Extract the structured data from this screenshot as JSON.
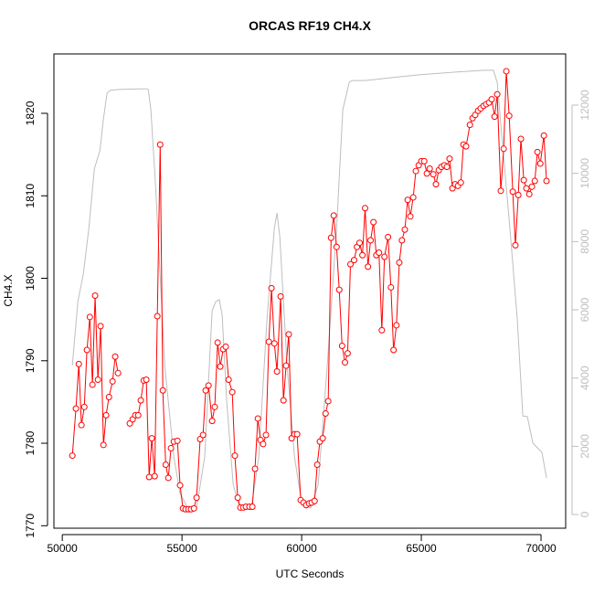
{
  "chart_data": {
    "type": "line",
    "title": "ORCAS RF19 CH4.X",
    "x_label": "UTC Seconds",
    "y_label": "CH4.X",
    "xlim": [
      49650,
      71030
    ],
    "xticks": [
      50000,
      55000,
      60000,
      65000,
      70000
    ],
    "ylim": [
      1769.7,
      1827.2
    ],
    "yticks": [
      1770,
      1780,
      1790,
      1800,
      1810,
      1820
    ],
    "y2lim": [
      -400,
      13500
    ],
    "y2ticks": [
      0,
      2000,
      4000,
      6000,
      8000,
      10000,
      12000
    ],
    "y2_color": "#bebebe",
    "series": [
      {
        "color": "#bebebe",
        "axis": "y2",
        "markers": false,
        "x": [
          50420,
          50650,
          50880,
          51110,
          51340,
          51450,
          51570,
          51720,
          51870,
          51990,
          52370,
          53510,
          53590,
          53700,
          53890,
          54280,
          54660,
          54920,
          55230,
          55610,
          55950,
          56260,
          56410,
          56560,
          56680,
          56870,
          57140,
          57410,
          57900,
          58210,
          58550,
          58860,
          58970,
          59090,
          59390,
          59700,
          60000,
          60380,
          60690,
          61070,
          61460,
          61720,
          61990,
          62110,
          62680,
          63820,
          64960,
          66490,
          67630,
          68010,
          68170,
          68400,
          68700,
          69010,
          69240,
          69430,
          69660,
          69930,
          70040,
          70230
        ],
        "values": [
          4370,
          6240,
          7050,
          8390,
          10130,
          10390,
          10660,
          11600,
          12350,
          12430,
          12460,
          12480,
          12460,
          11870,
          9720,
          4370,
          1690,
          620,
          210,
          190,
          1690,
          5970,
          6240,
          6300,
          5840,
          3300,
          880,
          210,
          210,
          1690,
          5710,
          8390,
          8840,
          8120,
          4370,
          1690,
          350,
          190,
          880,
          4370,
          8390,
          11870,
          12670,
          12720,
          12720,
          12810,
          12890,
          12970,
          13020,
          13020,
          12670,
          10800,
          8390,
          5710,
          2890,
          2870,
          2090,
          1900,
          1820,
          1070
        ]
      },
      {
        "color": "#ff0000",
        "markers": true,
        "x": [
          50420,
          50570,
          50690,
          50800,
          50920,
          51030,
          51150,
          51260,
          51370,
          51490,
          51600,
          51720,
          51830,
          51950,
          52100,
          52210,
          52330,
          52580,
          52820,
          52940,
          53050,
          53170,
          53280,
          53400,
          53510,
          53630,
          53740,
          53860,
          53970,
          54090,
          54200,
          54320,
          54430,
          54540,
          54660,
          54810,
          54920,
          55040,
          55150,
          55270,
          55380,
          55500,
          55610,
          55760,
          55880,
          55990,
          56110,
          56260,
          56370,
          56490,
          56600,
          56720,
          56830,
          56950,
          57100,
          57210,
          57330,
          57440,
          57560,
          57670,
          57820,
          57940,
          58050,
          58170,
          58280,
          58390,
          58510,
          58630,
          58740,
          58860,
          58970,
          59120,
          59240,
          59350,
          59460,
          59580,
          59700,
          59810,
          59960,
          60080,
          60190,
          60310,
          60420,
          60540,
          60650,
          60760,
          60880,
          61000,
          61110,
          61230,
          61340,
          61460,
          61570,
          61690,
          61810,
          61920,
          62040,
          62190,
          62310,
          62420,
          62540,
          62650,
          62770,
          62880,
          63000,
          63120,
          63230,
          63350,
          63460,
          63610,
          63730,
          63840,
          63960,
          64080,
          64190,
          64310,
          64430,
          64540,
          64660,
          64770,
          64890,
          65000,
          65120,
          65230,
          65350,
          65500,
          65610,
          65730,
          65840,
          65960,
          66070,
          66180,
          66300,
          66410,
          66530,
          66650,
          66760,
          66870,
          67030,
          67140,
          67250,
          67370,
          67480,
          67600,
          67710,
          67830,
          67940,
          68060,
          68170,
          68320,
          68440,
          68550,
          68670,
          68820,
          68930,
          69050,
          69160,
          69280,
          69390,
          69510,
          69620,
          69740,
          69850,
          69970,
          70120,
          70230
        ],
        "values": [
          1778.5,
          1784.2,
          1789.6,
          1782.2,
          1784.4,
          1791.3,
          1795.3,
          1787.1,
          1797.9,
          1787.7,
          1794.2,
          1779.8,
          1783.4,
          1785.6,
          1787.5,
          1790.5,
          1788.5,
          null,
          1782.4,
          1782.9,
          1783.4,
          1783.4,
          1785.2,
          1787.6,
          1787.7,
          1775.9,
          1780.6,
          1776.0,
          1795.4,
          1816.2,
          1786.4,
          1777.4,
          1775.8,
          1779.4,
          1780.2,
          1780.3,
          1774.9,
          1772.1,
          1772.0,
          1772.0,
          1772.0,
          1772.1,
          1773.4,
          1780.5,
          1781.0,
          1786.4,
          1787.0,
          1782.7,
          1784.4,
          1792.2,
          1789.3,
          1791.4,
          1791.7,
          1787.7,
          1786.2,
          1778.5,
          1773.4,
          1772.2,
          1772.2,
          1772.3,
          1772.3,
          1772.3,
          1776.9,
          1783.0,
          1780.4,
          1779.9,
          1781.0,
          1792.3,
          1798.8,
          1792.1,
          1788.7,
          1797.8,
          1785.2,
          1789.4,
          1793.2,
          1780.6,
          1781.1,
          1781.1,
          1773.1,
          1772.8,
          1772.5,
          1772.7,
          1772.8,
          1773.0,
          1777.4,
          1780.2,
          1780.6,
          1783.6,
          1785.1,
          1804.9,
          1807.6,
          1803.8,
          1798.6,
          1791.8,
          1789.8,
          1790.9,
          1801.7,
          1802.2,
          1803.8,
          1804.3,
          1802.8,
          1808.5,
          1801.4,
          1804.6,
          1806.8,
          1802.8,
          1803.1,
          1793.7,
          1802.6,
          1805.0,
          1798.9,
          1791.3,
          1794.3,
          1801.9,
          1804.6,
          1805.9,
          1809.5,
          1807.5,
          1809.8,
          1813.0,
          1813.7,
          1814.2,
          1814.2,
          1812.7,
          1813.3,
          1812.6,
          1811.4,
          1813.1,
          1813.5,
          1813.7,
          1813.5,
          1814.5,
          1810.9,
          1811.4,
          1811.2,
          1811.6,
          1816.2,
          1816.0,
          1818.6,
          1819.4,
          1819.8,
          1820.3,
          1820.6,
          1820.9,
          1821.1,
          1821.3,
          1821.7,
          1819.6,
          1822.3,
          1810.6,
          1815.7,
          1825.1,
          1819.7,
          1810.5,
          1804.0,
          1810.1,
          1816.9,
          1811.9,
          1810.9,
          1810.2,
          1811.1,
          1811.8,
          1815.3,
          1813.9,
          1817.3,
          1811.8
        ]
      }
    ]
  }
}
